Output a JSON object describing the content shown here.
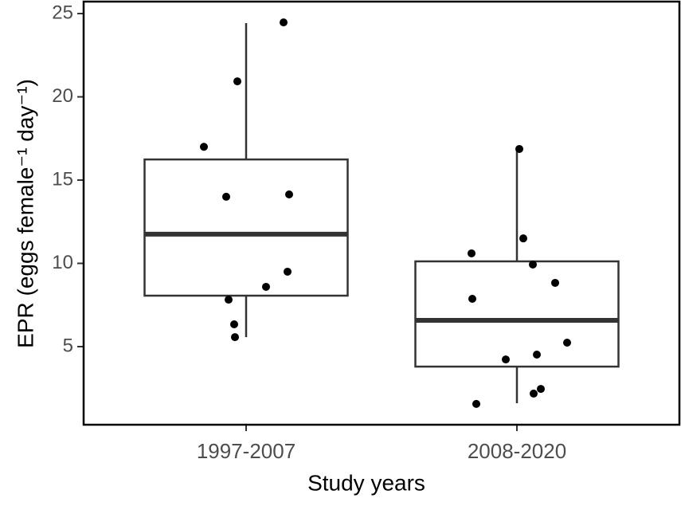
{
  "chart_data": {
    "type": "box",
    "x_label": "Study years",
    "y_label": "EPR (eggs female⁻¹ day⁻¹)",
    "categories": [
      "1997-2007",
      "2008-2020"
    ],
    "boxes": [
      {
        "whisker_low": 5.57,
        "q1": 8.06,
        "median": 11.75,
        "q3": 16.24,
        "whisker_high": 24.43,
        "points": [
          24.47,
          20.93,
          17.0,
          14.0,
          14.14,
          8.59,
          9.5,
          7.82,
          6.34,
          5.57
        ]
      },
      {
        "whisker_low": 1.6,
        "q1": 3.8,
        "median": 6.58,
        "q3": 10.12,
        "whisker_high": 16.87,
        "points": [
          16.87,
          11.5,
          9.93,
          10.6,
          8.83,
          7.87,
          5.24,
          4.52,
          4.23,
          2.46,
          2.18,
          1.56
        ]
      }
    ],
    "box_color": "#333333",
    "point_color": "#000000",
    "ylim": [
      0.31,
      25.72
    ],
    "yticks": [
      5,
      10,
      15,
      20,
      25
    ]
  }
}
